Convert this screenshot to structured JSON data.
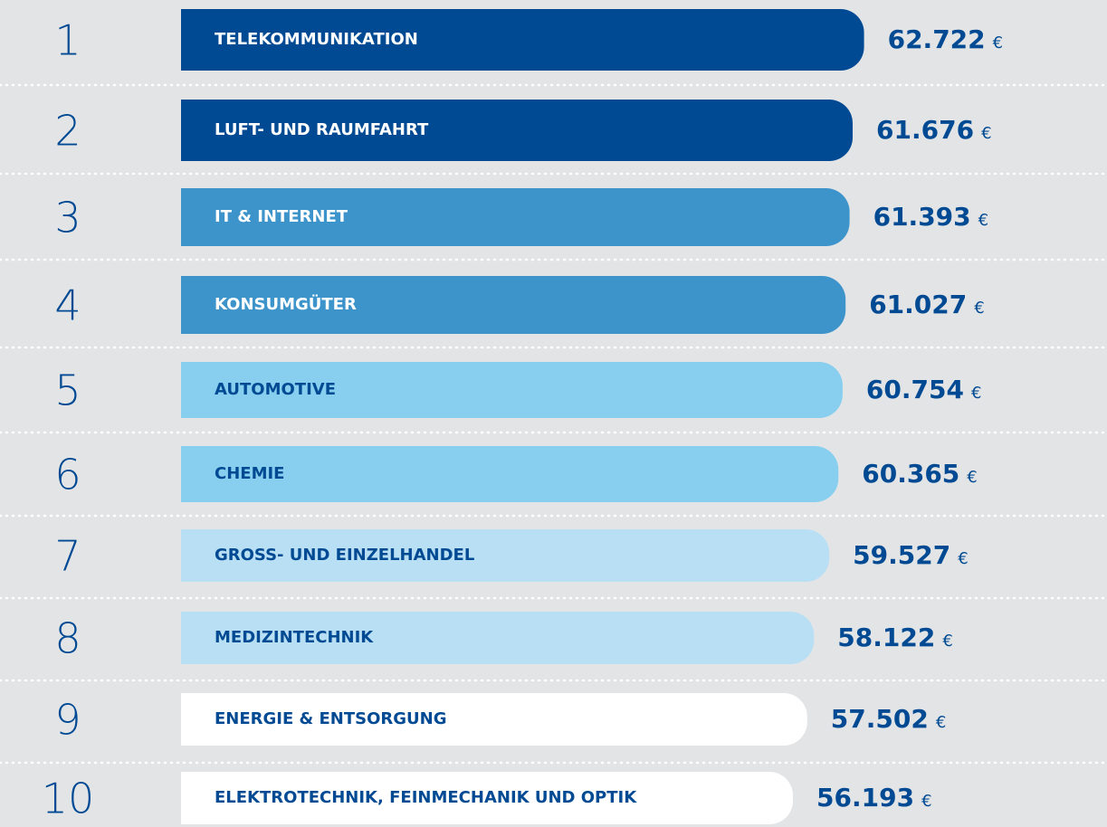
{
  "chart_data": {
    "type": "bar",
    "orientation": "horizontal",
    "ranks": [
      1,
      2,
      3,
      4,
      5,
      6,
      7,
      8,
      9,
      10
    ],
    "categories": [
      "TELEKOMMUNIKATION",
      "LUFT- UND RAUMFAHRT",
      "IT & INTERNET",
      "KONSUMGÜTER",
      "AUTOMOTIVE",
      "CHEMIE",
      "GROSS- UND EINZELHANDEL",
      "MEDIZINTECHNIK",
      "ENERGIE & ENTSORGUNG",
      "ELEKTROTECHNIK, FEINMECHANIK UND OPTIK"
    ],
    "values": [
      62722,
      61676,
      61393,
      61027,
      60754,
      60365,
      59527,
      58122,
      57502,
      56193
    ],
    "value_labels": [
      "62.722",
      "61.676",
      "61.393",
      "61.027",
      "60.754",
      "60.365",
      "59.527",
      "58.122",
      "57.502",
      "56.193"
    ],
    "unit": "€",
    "colors": [
      "#004a93",
      "#004a93",
      "#3d94cb",
      "#3d94cb",
      "#87ceef",
      "#87ceef",
      "#b8dff4",
      "#b8dff4",
      "#ffffff",
      "#ffffff"
    ],
    "label_colors": [
      "#ffffff",
      "#ffffff",
      "#ffffff",
      "#ffffff",
      "#004a93",
      "#004a93",
      "#004a93",
      "#004a93",
      "#004a93",
      "#004a93"
    ],
    "xlim": [
      0,
      65000
    ]
  }
}
